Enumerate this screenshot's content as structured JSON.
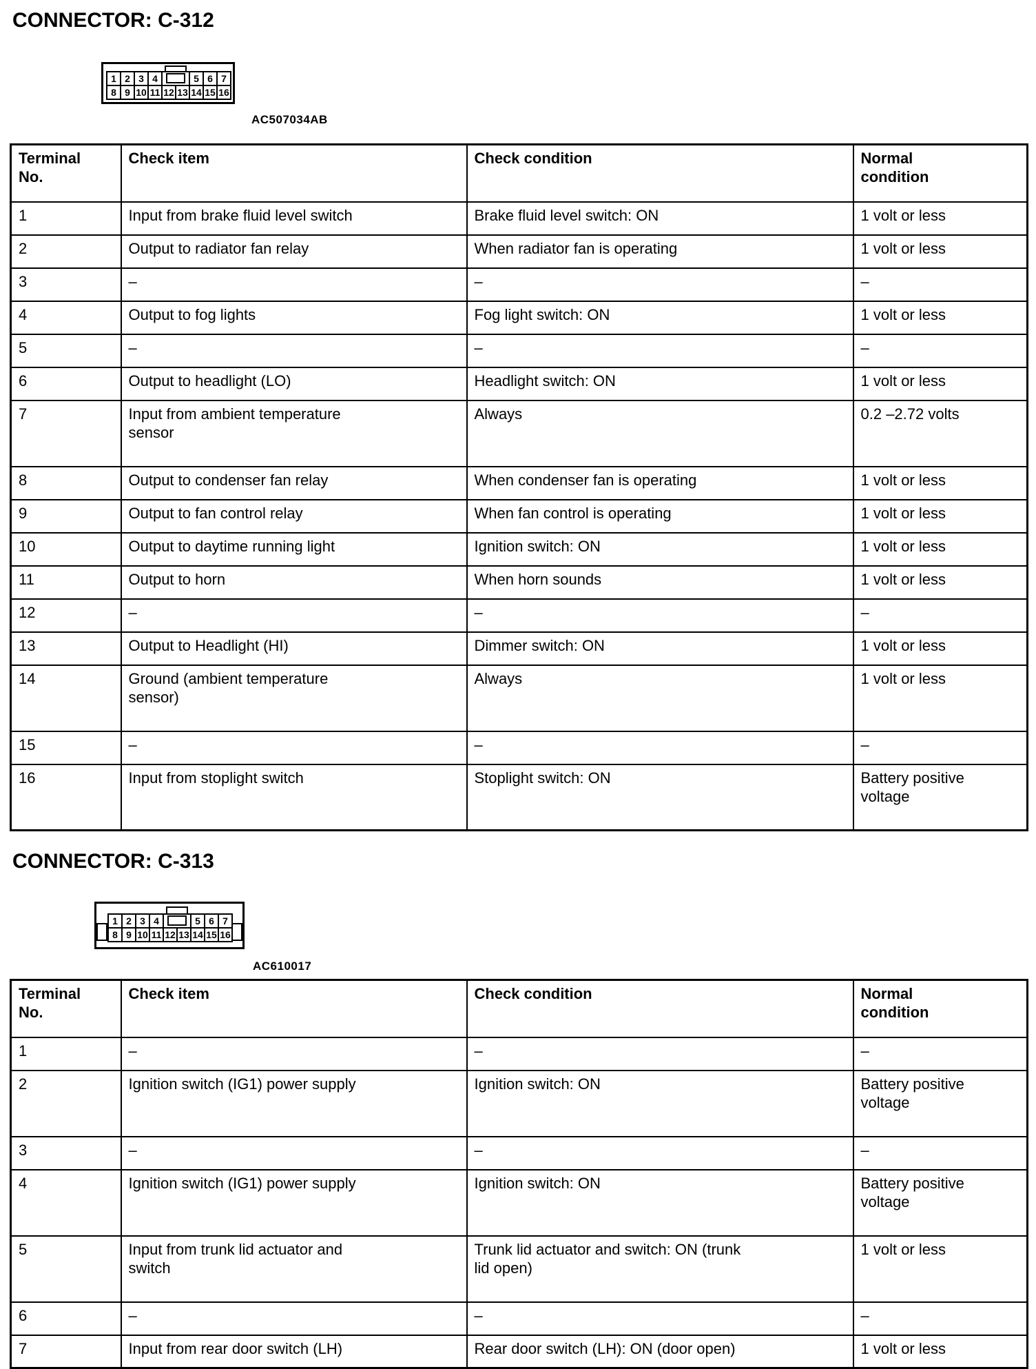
{
  "sections": [
    {
      "heading": "CONNECTOR: C-312",
      "figure_code": "AC507034AB",
      "connector": {
        "pins_top_left": [
          "1",
          "2",
          "3",
          "4"
        ],
        "pins_top_right": [
          "5",
          "6",
          "7"
        ],
        "pins_bottom": [
          "8",
          "9",
          "10",
          "11",
          "12",
          "13",
          "14",
          "15",
          "16"
        ]
      },
      "table": {
        "headers": {
          "terminal": "Terminal\nNo.",
          "item": "Check item",
          "condition": "Check condition",
          "normal": "Normal\ncondition"
        },
        "rows": [
          {
            "no": "1",
            "item": "Input from brake fluid level switch",
            "condition": "Brake fluid level switch: ON",
            "normal": "1 volt or less"
          },
          {
            "no": "2",
            "item": "Output to radiator fan relay",
            "condition": "When radiator fan is operating",
            "normal": "1 volt or less"
          },
          {
            "no": "3",
            "item": "–",
            "condition": "–",
            "normal": "–"
          },
          {
            "no": "4",
            "item": "Output to fog lights",
            "condition": "Fog light switch: ON",
            "normal": "1 volt or less"
          },
          {
            "no": "5",
            "item": "–",
            "condition": "–",
            "normal": "–"
          },
          {
            "no": "6",
            "item": "Output to headlight (LO)",
            "condition": "Headlight switch: ON",
            "normal": "1 volt or less"
          },
          {
            "no": "7",
            "item": "Input from ambient temperature\nsensor",
            "condition": "Always",
            "normal": "0.2 –2.72 volts"
          },
          {
            "no": "8",
            "item": "Output to condenser fan relay",
            "condition": "When condenser fan is operating",
            "normal": "1 volt or less"
          },
          {
            "no": "9",
            "item": "Output to fan control relay",
            "condition": "When fan control is operating",
            "normal": "1 volt or less"
          },
          {
            "no": "10",
            "item": "Output to daytime running light",
            "condition": "Ignition switch: ON",
            "normal": "1 volt or less"
          },
          {
            "no": "11",
            "item": "Output to horn",
            "condition": "When horn sounds",
            "normal": "1 volt or less"
          },
          {
            "no": "12",
            "item": "–",
            "condition": "–",
            "normal": "–"
          },
          {
            "no": "13",
            "item": "Output to Headlight (HI)",
            "condition": "Dimmer switch: ON",
            "normal": "1 volt or less"
          },
          {
            "no": "14",
            "item": "Ground (ambient temperature\nsensor)",
            "condition": "Always",
            "normal": "1 volt or less"
          },
          {
            "no": "15",
            "item": "–",
            "condition": "–",
            "normal": "–"
          },
          {
            "no": "16",
            "item": "Input from stoplight switch",
            "condition": "Stoplight switch: ON",
            "normal": "Battery positive\nvoltage"
          }
        ]
      }
    },
    {
      "heading": "CONNECTOR: C-313",
      "figure_code": "AC610017",
      "connector": {
        "pins_top_left": [
          "1",
          "2",
          "3",
          "4"
        ],
        "pins_top_right": [
          "5",
          "6",
          "7"
        ],
        "pins_bottom": [
          "8",
          "9",
          "10",
          "11",
          "12",
          "13",
          "14",
          "15",
          "16"
        ]
      },
      "table": {
        "headers": {
          "terminal": "Terminal\nNo.",
          "item": "Check item",
          "condition": "Check condition",
          "normal": "Normal\ncondition"
        },
        "rows": [
          {
            "no": "1",
            "item": "–",
            "condition": "–",
            "normal": "–"
          },
          {
            "no": "2",
            "item": "Ignition switch (IG1) power supply",
            "condition": "Ignition switch: ON",
            "normal": "Battery positive\nvoltage"
          },
          {
            "no": "3",
            "item": "–",
            "condition": "–",
            "normal": "–"
          },
          {
            "no": "4",
            "item": "Ignition switch (IG1) power supply",
            "condition": "Ignition switch: ON",
            "normal": "Battery positive\nvoltage"
          },
          {
            "no": "5",
            "item": "Input from trunk lid actuator and\nswitch",
            "condition": "Trunk lid actuator and switch: ON (trunk\nlid open)",
            "normal": "1 volt or less"
          },
          {
            "no": "6",
            "item": "–",
            "condition": "–",
            "normal": "–"
          },
          {
            "no": "7",
            "item": "Input from rear door switch (LH)",
            "condition": "Rear door switch (LH): ON (door open)",
            "normal": "1 volt or less"
          }
        ]
      }
    }
  ]
}
